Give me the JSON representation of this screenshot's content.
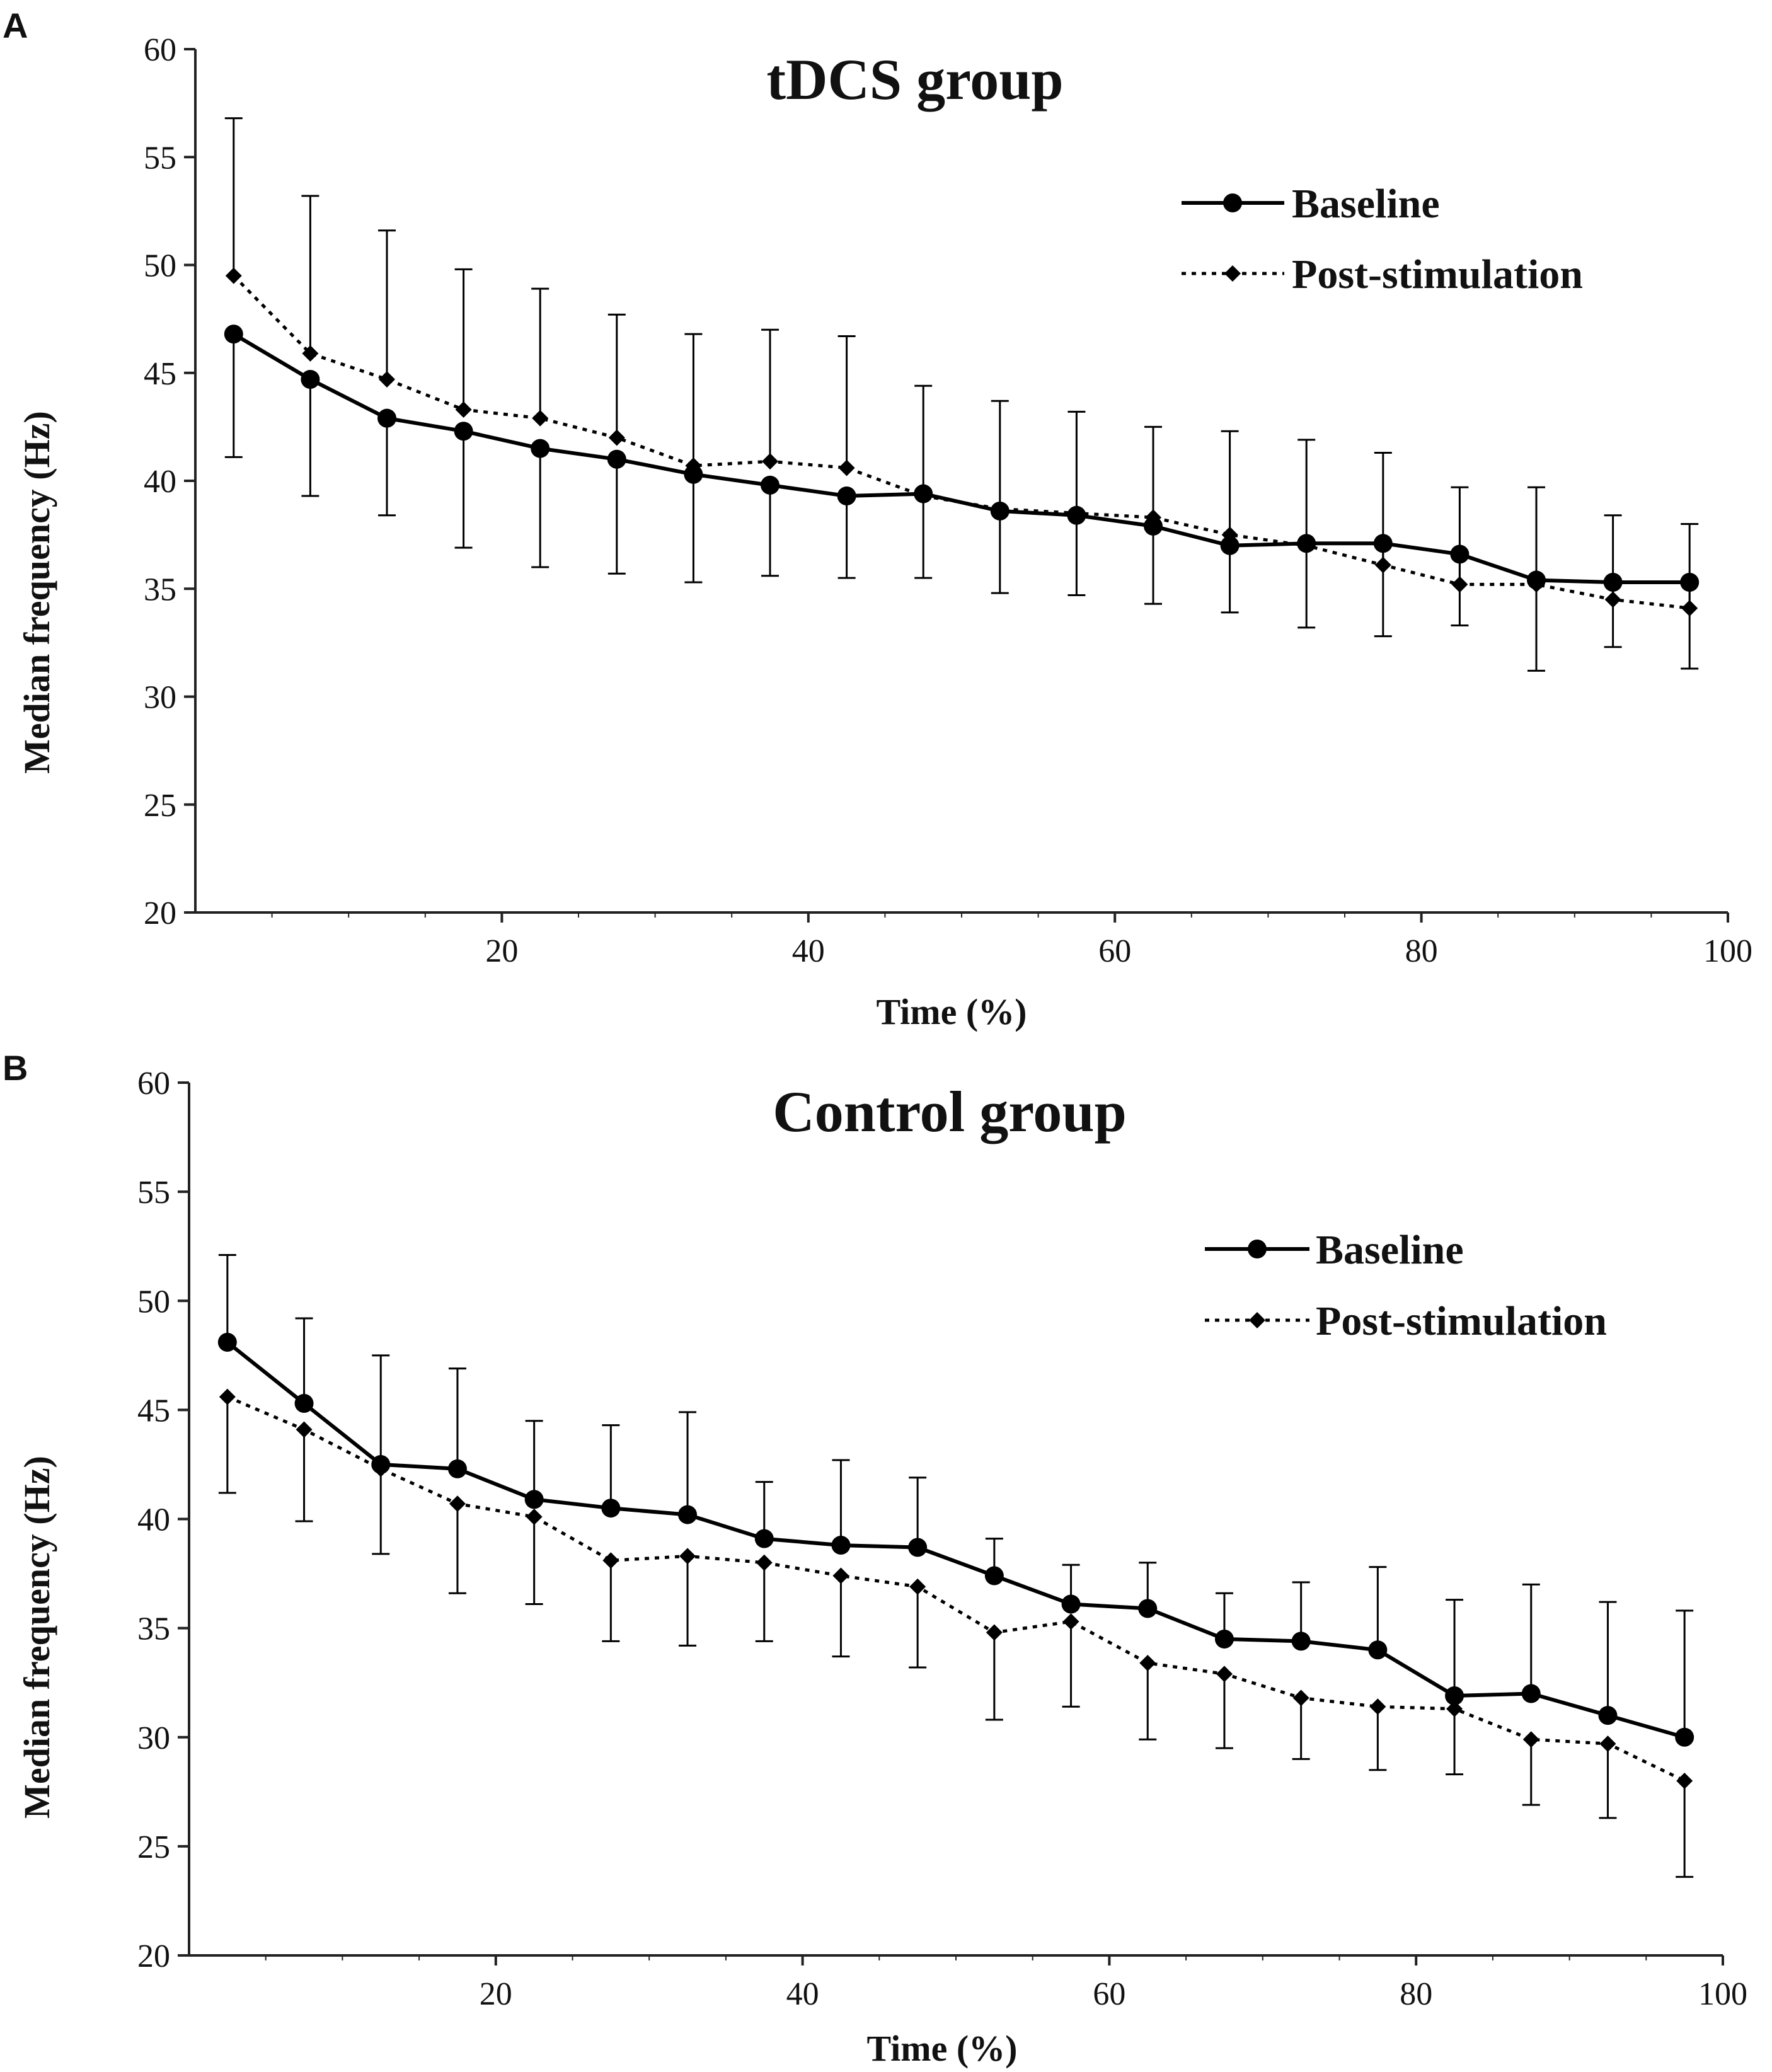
{
  "figure": {
    "background": "#ffffff",
    "ink_color": "#000000",
    "axis_color": "#222222"
  },
  "chart_data": [
    {
      "panel": "A",
      "type": "line",
      "title": "tDCS group",
      "xlabel": "Time (%)",
      "ylabel": "Median frequency  (Hz)",
      "xlim": [
        0,
        100
      ],
      "ylim": [
        20,
        60
      ],
      "xticks": [
        "20",
        "40",
        "60",
        "80",
        "100"
      ],
      "yticks": [
        "20",
        "25",
        "30",
        "35",
        "40",
        "45",
        "50",
        "55",
        "60"
      ],
      "grid": false,
      "legend_position": "top-right",
      "x": [
        2.5,
        7.5,
        12.5,
        17.5,
        22.5,
        27.5,
        32.5,
        37.5,
        42.5,
        47.5,
        52.5,
        57.5,
        62.5,
        67.5,
        72.5,
        77.5,
        82.5,
        87.5,
        92.5,
        97.5
      ],
      "series": [
        {
          "name": "Baseline",
          "style": "solid",
          "marker": "circle",
          "values": [
            46.8,
            44.7,
            42.9,
            42.3,
            41.5,
            41.0,
            40.3,
            39.8,
            39.3,
            39.4,
            38.6,
            38.4,
            37.9,
            37.0,
            37.1,
            37.1,
            36.6,
            35.4,
            35.3,
            35.3
          ],
          "error_lower": [
            5.7,
            5.4,
            4.5,
            5.4,
            5.5,
            5.3,
            5.0,
            4.2,
            3.8,
            3.9,
            3.8,
            3.7,
            3.6,
            3.1,
            3.9,
            4.3,
            3.3,
            4.2,
            3.0,
            4.0
          ]
        },
        {
          "name": "Post-stimulation",
          "style": "dotted",
          "marker": "diamond",
          "values": [
            49.5,
            45.9,
            44.7,
            43.3,
            42.9,
            42.0,
            40.7,
            40.9,
            40.6,
            39.3,
            38.7,
            38.5,
            38.3,
            37.5,
            37.0,
            36.1,
            35.2,
            35.2,
            34.5,
            34.1
          ],
          "error_upper": [
            7.3,
            7.3,
            6.9,
            6.5,
            6.0,
            5.7,
            6.1,
            6.1,
            6.1,
            5.1,
            5.0,
            4.7,
            4.2,
            4.8,
            4.9,
            5.2,
            4.5,
            4.5,
            3.9,
            3.9
          ]
        }
      ]
    },
    {
      "panel": "B",
      "type": "line",
      "title": "Control group",
      "xlabel": "Time (%)",
      "ylabel": "Median frequency  (Hz)",
      "xlim": [
        0,
        100
      ],
      "ylim": [
        20,
        60
      ],
      "xticks": [
        "20",
        "40",
        "60",
        "80",
        "100"
      ],
      "yticks": [
        "20",
        "25",
        "30",
        "35",
        "40",
        "45",
        "50",
        "55",
        "60"
      ],
      "grid": false,
      "legend_position": "top-right",
      "x": [
        2.5,
        7.5,
        12.5,
        17.5,
        22.5,
        27.5,
        32.5,
        37.5,
        42.5,
        47.5,
        52.5,
        57.5,
        62.5,
        67.5,
        72.5,
        77.5,
        82.5,
        87.5,
        92.5,
        97.5
      ],
      "series": [
        {
          "name": "Baseline",
          "style": "solid",
          "marker": "circle",
          "values": [
            48.1,
            45.3,
            42.5,
            42.3,
            40.9,
            40.5,
            40.2,
            39.1,
            38.8,
            38.7,
            37.4,
            36.1,
            35.9,
            34.5,
            34.4,
            34.0,
            31.9,
            32.0,
            31.0,
            30.0
          ],
          "error_upper": [
            4.0,
            3.9,
            5.0,
            4.6,
            3.6,
            3.8,
            4.7,
            2.6,
            3.9,
            3.2,
            1.7,
            1.8,
            2.1,
            2.1,
            2.7,
            3.8,
            4.4,
            5.0,
            5.2,
            5.8
          ]
        },
        {
          "name": "Post-stimulation",
          "style": "dotted",
          "marker": "diamond",
          "values": [
            45.6,
            44.1,
            42.3,
            40.7,
            40.1,
            38.1,
            38.3,
            38.0,
            37.4,
            36.9,
            34.8,
            35.3,
            33.4,
            32.9,
            31.8,
            31.4,
            31.3,
            29.9,
            29.7,
            28.0
          ],
          "error_lower": [
            4.4,
            4.2,
            3.9,
            4.1,
            4.0,
            3.7,
            4.1,
            3.6,
            3.7,
            3.7,
            4.0,
            3.9,
            3.5,
            3.4,
            2.8,
            2.9,
            3.0,
            3.0,
            3.4,
            4.4
          ]
        }
      ]
    }
  ]
}
